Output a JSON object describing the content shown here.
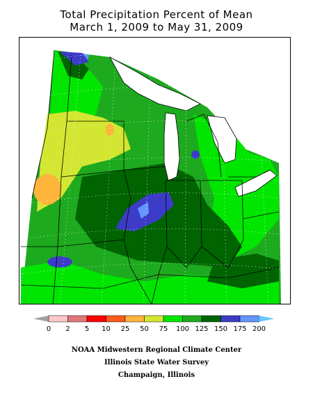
{
  "title": {
    "line1": "Total Precipitation Percent of Mean",
    "line2": "March 1, 2009 to May 31, 2009"
  },
  "legend": {
    "ticks": [
      "0",
      "2",
      "5",
      "10",
      "25",
      "50",
      "75",
      "100",
      "125",
      "150",
      "175",
      "200"
    ],
    "colors": [
      "#ffc8c8",
      "#e07878",
      "#ff0000",
      "#ff5a1e",
      "#ffb43c",
      "#d2e632",
      "#00e600",
      "#1eaa1e",
      "#006400",
      "#3c3cc8",
      "#6496ff"
    ],
    "under_color": "#a0a0a0",
    "over_color": "#64c8ff"
  },
  "map": {
    "colors": {
      "green_light": "#00e600",
      "green_mid": "#1eaa1e",
      "green_dark": "#006400",
      "yellow_green": "#d2e632",
      "orange": "#ffb43c",
      "blue_dark": "#3c3cc8",
      "blue_light": "#6496ff",
      "water": "#ffffff",
      "lines": "#000000",
      "grid": "#ffffff"
    }
  },
  "credits": {
    "line1": "NOAA Midwestern Regional Climate Center",
    "line2": "Illinois State Water Survey",
    "line3": "Champaign, Illinois"
  }
}
